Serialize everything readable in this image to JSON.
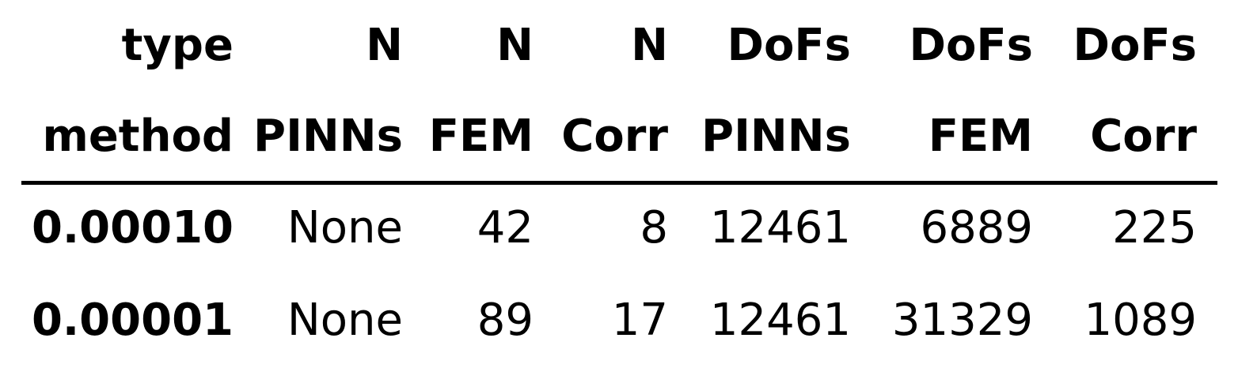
{
  "table": {
    "header_row1": [
      "type",
      "N",
      "N",
      "N",
      "DoFs",
      "DoFs",
      "DoFs"
    ],
    "header_row2": [
      "method",
      "PINNs",
      "FEM",
      "Corr",
      "PINNs",
      "FEM",
      "Corr"
    ],
    "rows": [
      {
        "index": "0.00010",
        "cells": [
          "None",
          "42",
          "8",
          "12461",
          "6889",
          "225"
        ]
      },
      {
        "index": "0.00001",
        "cells": [
          "None",
          "89",
          "17",
          "12461",
          "31329",
          "1089"
        ]
      }
    ]
  }
}
